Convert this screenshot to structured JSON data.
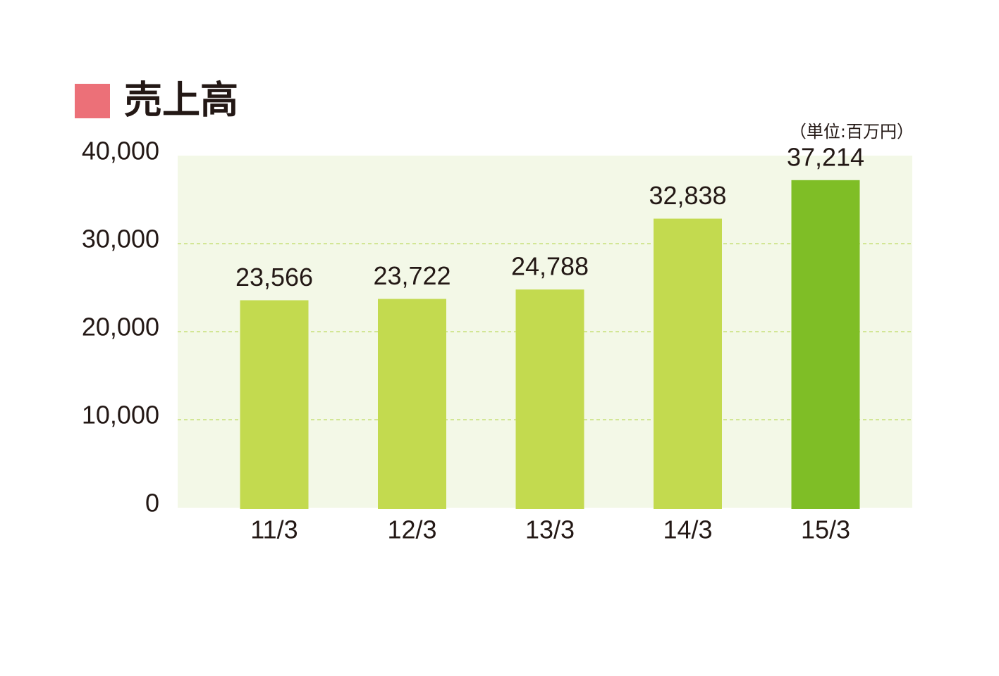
{
  "chart_data": {
    "type": "bar",
    "title": "売上高",
    "unit_note": "（単位:百万円）",
    "categories": [
      "11/3",
      "12/3",
      "13/3",
      "14/3",
      "15/3"
    ],
    "values": [
      23566,
      23722,
      24788,
      32838,
      37214
    ],
    "value_labels": [
      "23,566",
      "23,722",
      "24,788",
      "32,838",
      "37,214"
    ],
    "colors": [
      "#c3da4f",
      "#c3da4f",
      "#c3da4f",
      "#c3da4f",
      "#7fbe26"
    ],
    "title_marker_color": "#ec7078",
    "ylim": [
      0,
      40000
    ],
    "yticks": [
      0,
      {
        "value": 10000,
        "label": "10,000"
      },
      {
        "value": 20000,
        "label": "20,000"
      },
      {
        "value": 30000,
        "label": "30,000"
      },
      {
        "value": 40000,
        "label": "40,000"
      }
    ],
    "grid": true
  }
}
